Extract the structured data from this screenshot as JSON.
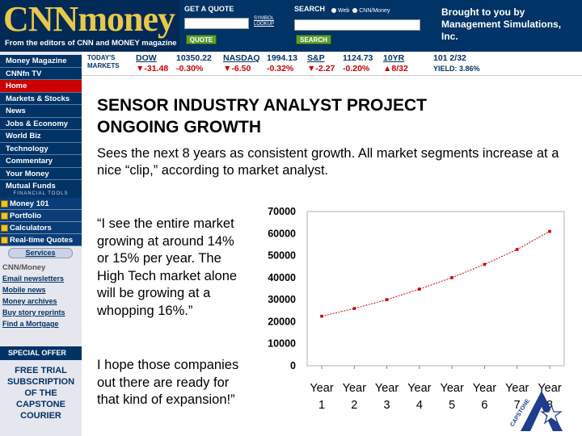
{
  "header": {
    "logo_prefix": "CNN",
    "logo_suffix": "money",
    "tagline": "From the editors of CNN and MONEY magazine",
    "quote_label": "GET A QUOTE",
    "symbol_lookup": "SYMBOL LOOKUP",
    "quote_button": "QUOTE",
    "search_label": "SEARCH",
    "search_opt_web": "Web",
    "search_opt_cnn": "CNN/Money",
    "search_button": "SEARCH",
    "sponsor": "Brought to you by Management Simulations, Inc."
  },
  "ticker": {
    "label": "TODAY'S MARKETS",
    "items": [
      {
        "sym": "DOW",
        "price": "10350.22",
        "change": "▼-31.48",
        "pct": "-0.30%"
      },
      {
        "sym": "NASDAQ",
        "price": "1994.13",
        "change": "▼-6.50",
        "pct": "-0.32%"
      },
      {
        "sym": "S&P",
        "price": "1124.73",
        "change": "▼-2.27",
        "pct": "-0.20%"
      },
      {
        "sym": "10YR",
        "price": "101 2/32",
        "change": "▲8/32",
        "pct": "YIELD: 3.86%"
      }
    ]
  },
  "sidebar": {
    "nav": [
      "Money Magazine",
      "CNNfn TV",
      "Home",
      "Markets & Stocks",
      "News",
      "Jobs & Economy",
      "World Biz",
      "Technology",
      "Commentary",
      "Your Money",
      "Mutual Funds"
    ],
    "tools_label": "FINANCIAL TOOLS",
    "tools": [
      "Money 101",
      "Portfolio",
      "Calculators",
      "Real-time Quotes"
    ],
    "services_button": "Services",
    "cnn_money_label": "CNN/Money",
    "services": [
      "Email newsletters",
      "Mobile news",
      "Money archives",
      "Buy story reprints",
      "Find a Mortgage"
    ],
    "special_offer": "SPECIAL OFFER",
    "trial_lines": [
      "FREE TRIAL",
      "SUBSCRIPTION",
      "OF THE",
      "CAPSTONE",
      "COURIER"
    ]
  },
  "main": {
    "title_line1": "SENSOR INDUSTRY ANALYST PROJECT",
    "title_line2": "ONGOING GROWTH",
    "subtitle": "Sees the next 8 years as consistent growth.  All market segments increase at a nice “clip,” according to market analyst.",
    "quote": "“I see the entire market growing at around 14% or 15% per year.  The High Tech market alone will be growing at a whopping 16%.”",
    "closing": "I hope those companies out there are ready for that kind of expansion!”"
  },
  "badge": {
    "text": "CAPSTONE"
  },
  "chart_data": {
    "type": "line",
    "categories": [
      "Year 1",
      "Year 2",
      "Year 3",
      "Year 4",
      "Year 5",
      "Year 6",
      "Year 7",
      "Year 8"
    ],
    "series": [
      {
        "values": [
          22500,
          26000,
          30000,
          34800,
          40000,
          46000,
          52800,
          61000
        ],
        "color": "#cc0000"
      }
    ],
    "yticks": [
      0,
      10000,
      20000,
      30000,
      40000,
      50000,
      60000,
      70000
    ],
    "ylim": [
      0,
      70000
    ],
    "grid": false,
    "legend": "none"
  }
}
